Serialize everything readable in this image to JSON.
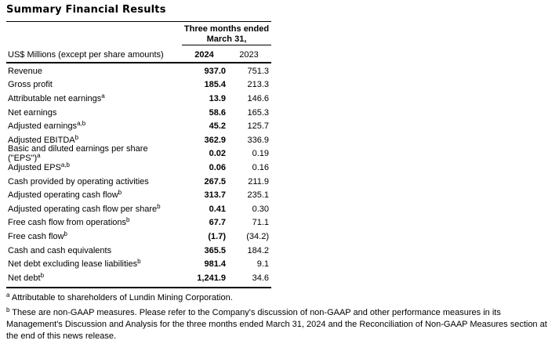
{
  "title": "Summary Financial Results",
  "table": {
    "period_header_line1": "Three months ended",
    "period_header_line2": "March 31,",
    "row_header": "US$ Millions (except per share amounts)",
    "columns": [
      {
        "label": "2024"
      },
      {
        "label": "2023"
      }
    ],
    "rows": [
      {
        "label": "Revenue",
        "sup": "",
        "v2024": "937.0",
        "v2023": "751.3"
      },
      {
        "label": "Gross profit",
        "sup": "",
        "v2024": "185.4",
        "v2023": "213.3"
      },
      {
        "label": "Attributable net earnings",
        "sup": "a",
        "v2024": "13.9",
        "v2023": "146.6"
      },
      {
        "label": "Net earnings",
        "sup": "",
        "v2024": "58.6",
        "v2023": "165.3"
      },
      {
        "label": "Adjusted earnings",
        "sup": "a,b",
        "v2024": "45.2",
        "v2023": "125.7"
      },
      {
        "label": "Adjusted EBITDA",
        "sup": "b",
        "v2024": "362.9",
        "v2023": "336.9"
      },
      {
        "label": "Basic and diluted earnings per share (\"EPS\")",
        "sup": "a",
        "v2024": "0.02",
        "v2023": "0.19"
      },
      {
        "label": "Adjusted EPS",
        "sup": "a,b",
        "v2024": "0.06",
        "v2023": "0.16"
      },
      {
        "label": "Cash provided by operating activities",
        "sup": "",
        "v2024": "267.5",
        "v2023": "211.9"
      },
      {
        "label": "Adjusted operating cash flow",
        "sup": "b",
        "v2024": "313.7",
        "v2023": "235.1"
      },
      {
        "label": "Adjusted operating cash flow per share",
        "sup": "b",
        "v2024": "0.41",
        "v2023": "0.30"
      },
      {
        "label": "Free cash flow from operations",
        "sup": "b",
        "v2024": "67.7",
        "v2023": "71.1"
      },
      {
        "label": "Free cash flow",
        "sup": "b",
        "v2024": "(1.7)",
        "v2023": "(34.2)"
      },
      {
        "label": "Cash and cash equivalents",
        "sup": "",
        "v2024": "365.5",
        "v2023": "184.2"
      },
      {
        "label": "Net debt excluding lease liabilities",
        "sup": "b",
        "v2024": "981.4",
        "v2023": "9.1"
      },
      {
        "label": "Net debt",
        "sup": "b",
        "v2024": "1,241.9",
        "v2023": "34.6"
      }
    ]
  },
  "footnotes": [
    {
      "marker": "a",
      "text": "Attributable to shareholders of Lundin Mining Corporation."
    },
    {
      "marker": "b",
      "text": "These are non-GAAP measures. Please refer to the Company's discussion of non-GAAP and other performance measures in its Management's Discussion and Analysis for the three months ended March 31, 2024 and the Reconciliation of Non-GAAP Measures section at the end of this news release."
    }
  ],
  "colors": {
    "text": "#000000",
    "background": "#ffffff",
    "rule": "#000000"
  }
}
